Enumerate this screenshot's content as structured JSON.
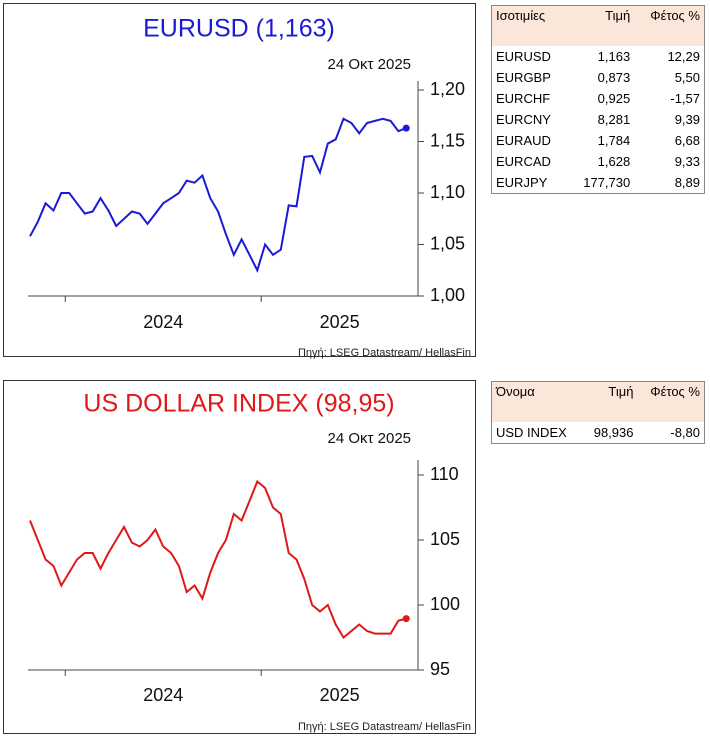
{
  "chart_data": [
    {
      "type": "line",
      "title": "EURUSD (1,163)",
      "subtitle": "24 Οκτ 2025",
      "source": "Πηγή: LSEG Datastream/ HellasFin",
      "x": [
        2023.82,
        2023.86,
        2023.9,
        2023.94,
        2023.98,
        2024.02,
        2024.06,
        2024.1,
        2024.14,
        2024.18,
        2024.22,
        2024.26,
        2024.3,
        2024.34,
        2024.38,
        2024.42,
        2024.46,
        2024.5,
        2024.54,
        2024.58,
        2024.62,
        2024.66,
        2024.7,
        2024.74,
        2024.78,
        2024.82,
        2024.86,
        2024.9,
        2024.94,
        2024.98,
        2025.02,
        2025.06,
        2025.1,
        2025.14,
        2025.18,
        2025.22,
        2025.26,
        2025.3,
        2025.34,
        2025.38,
        2025.42,
        2025.46,
        2025.5,
        2025.54,
        2025.58,
        2025.62,
        2025.66,
        2025.7,
        2025.74
      ],
      "series": [
        {
          "name": "EURUSD",
          "color": "#1a1ad6",
          "values": [
            1.058,
            1.072,
            1.09,
            1.083,
            1.1,
            1.1,
            1.09,
            1.08,
            1.082,
            1.095,
            1.083,
            1.068,
            1.075,
            1.082,
            1.08,
            1.07,
            1.08,
            1.09,
            1.095,
            1.1,
            1.112,
            1.11,
            1.117,
            1.095,
            1.082,
            1.06,
            1.04,
            1.055,
            1.04,
            1.025,
            1.05,
            1.04,
            1.045,
            1.088,
            1.087,
            1.135,
            1.136,
            1.12,
            1.148,
            1.152,
            1.172,
            1.168,
            1.158,
            1.168,
            1.17,
            1.172,
            1.17,
            1.16,
            1.163
          ]
        }
      ],
      "xlim": [
        2023.81,
        2025.8
      ],
      "xticks": [
        2024,
        2025
      ],
      "ylim": [
        1.0,
        1.2
      ],
      "yticks": [
        {
          "value": 1.0,
          "label": "1,00"
        },
        {
          "value": 1.05,
          "label": "1,05"
        },
        {
          "value": 1.1,
          "label": "1,10"
        },
        {
          "value": 1.15,
          "label": "1,15"
        },
        {
          "value": 1.2,
          "label": "1,20"
        }
      ],
      "title_color": "#1a1ad6"
    },
    {
      "type": "line",
      "title": "US DOLLAR INDEX (98,95)",
      "subtitle": "24 Οκτ 2025",
      "source": "Πηγή: LSEG Datastream/ HellasFin",
      "x": [
        2023.82,
        2023.86,
        2023.9,
        2023.94,
        2023.98,
        2024.02,
        2024.06,
        2024.1,
        2024.14,
        2024.18,
        2024.22,
        2024.26,
        2024.3,
        2024.34,
        2024.38,
        2024.42,
        2024.46,
        2024.5,
        2024.54,
        2024.58,
        2024.62,
        2024.66,
        2024.7,
        2024.74,
        2024.78,
        2024.82,
        2024.86,
        2024.9,
        2024.94,
        2024.98,
        2025.02,
        2025.06,
        2025.1,
        2025.14,
        2025.18,
        2025.22,
        2025.26,
        2025.3,
        2025.34,
        2025.38,
        2025.42,
        2025.46,
        2025.5,
        2025.54,
        2025.58,
        2025.62,
        2025.66,
        2025.7,
        2025.74
      ],
      "series": [
        {
          "name": "US DOLLAR INDEX",
          "color": "#e01818",
          "values": [
            106.5,
            105,
            103.5,
            103,
            101.5,
            102.5,
            103.5,
            104,
            104,
            102.8,
            104,
            105,
            106,
            104.8,
            104.5,
            105,
            105.8,
            104.5,
            104,
            103,
            101,
            101.5,
            100.5,
            102.5,
            104,
            105,
            107,
            106.5,
            108,
            109.5,
            109,
            107.5,
            107,
            104,
            103.5,
            102,
            100,
            99.5,
            100,
            98.5,
            97.5,
            98,
            98.5,
            98,
            97.8,
            97.8,
            97.8,
            98.8,
            98.95
          ]
        }
      ],
      "xlim": [
        2023.81,
        2025.8
      ],
      "xticks": [
        2024,
        2025
      ],
      "ylim": [
        95,
        110
      ],
      "yticks": [
        95,
        100,
        105,
        110
      ],
      "title_color": "#e01818"
    }
  ],
  "tables": [
    {
      "header": [
        "Ισοτιμίες",
        "Τιμή",
        "Φέτος %"
      ],
      "rows": [
        [
          "EURUSD",
          "1,163",
          "12,29"
        ],
        [
          "EURGBP",
          "0,873",
          "5,50"
        ],
        [
          "EURCHF",
          "0,925",
          "-1,57"
        ],
        [
          "EURCNY",
          "8,281",
          "9,39"
        ],
        [
          "EURAUD",
          "1,784",
          "6,68"
        ],
        [
          "EURCAD",
          "1,628",
          "9,33"
        ],
        [
          "EURJPY",
          "177,730",
          "8,89"
        ]
      ]
    },
    {
      "header": [
        "Όνομα",
        "Τιμή",
        "Φέτος %"
      ],
      "rows": [
        [
          "USD INDEX",
          "98,936",
          "-8,80"
        ]
      ]
    }
  ]
}
